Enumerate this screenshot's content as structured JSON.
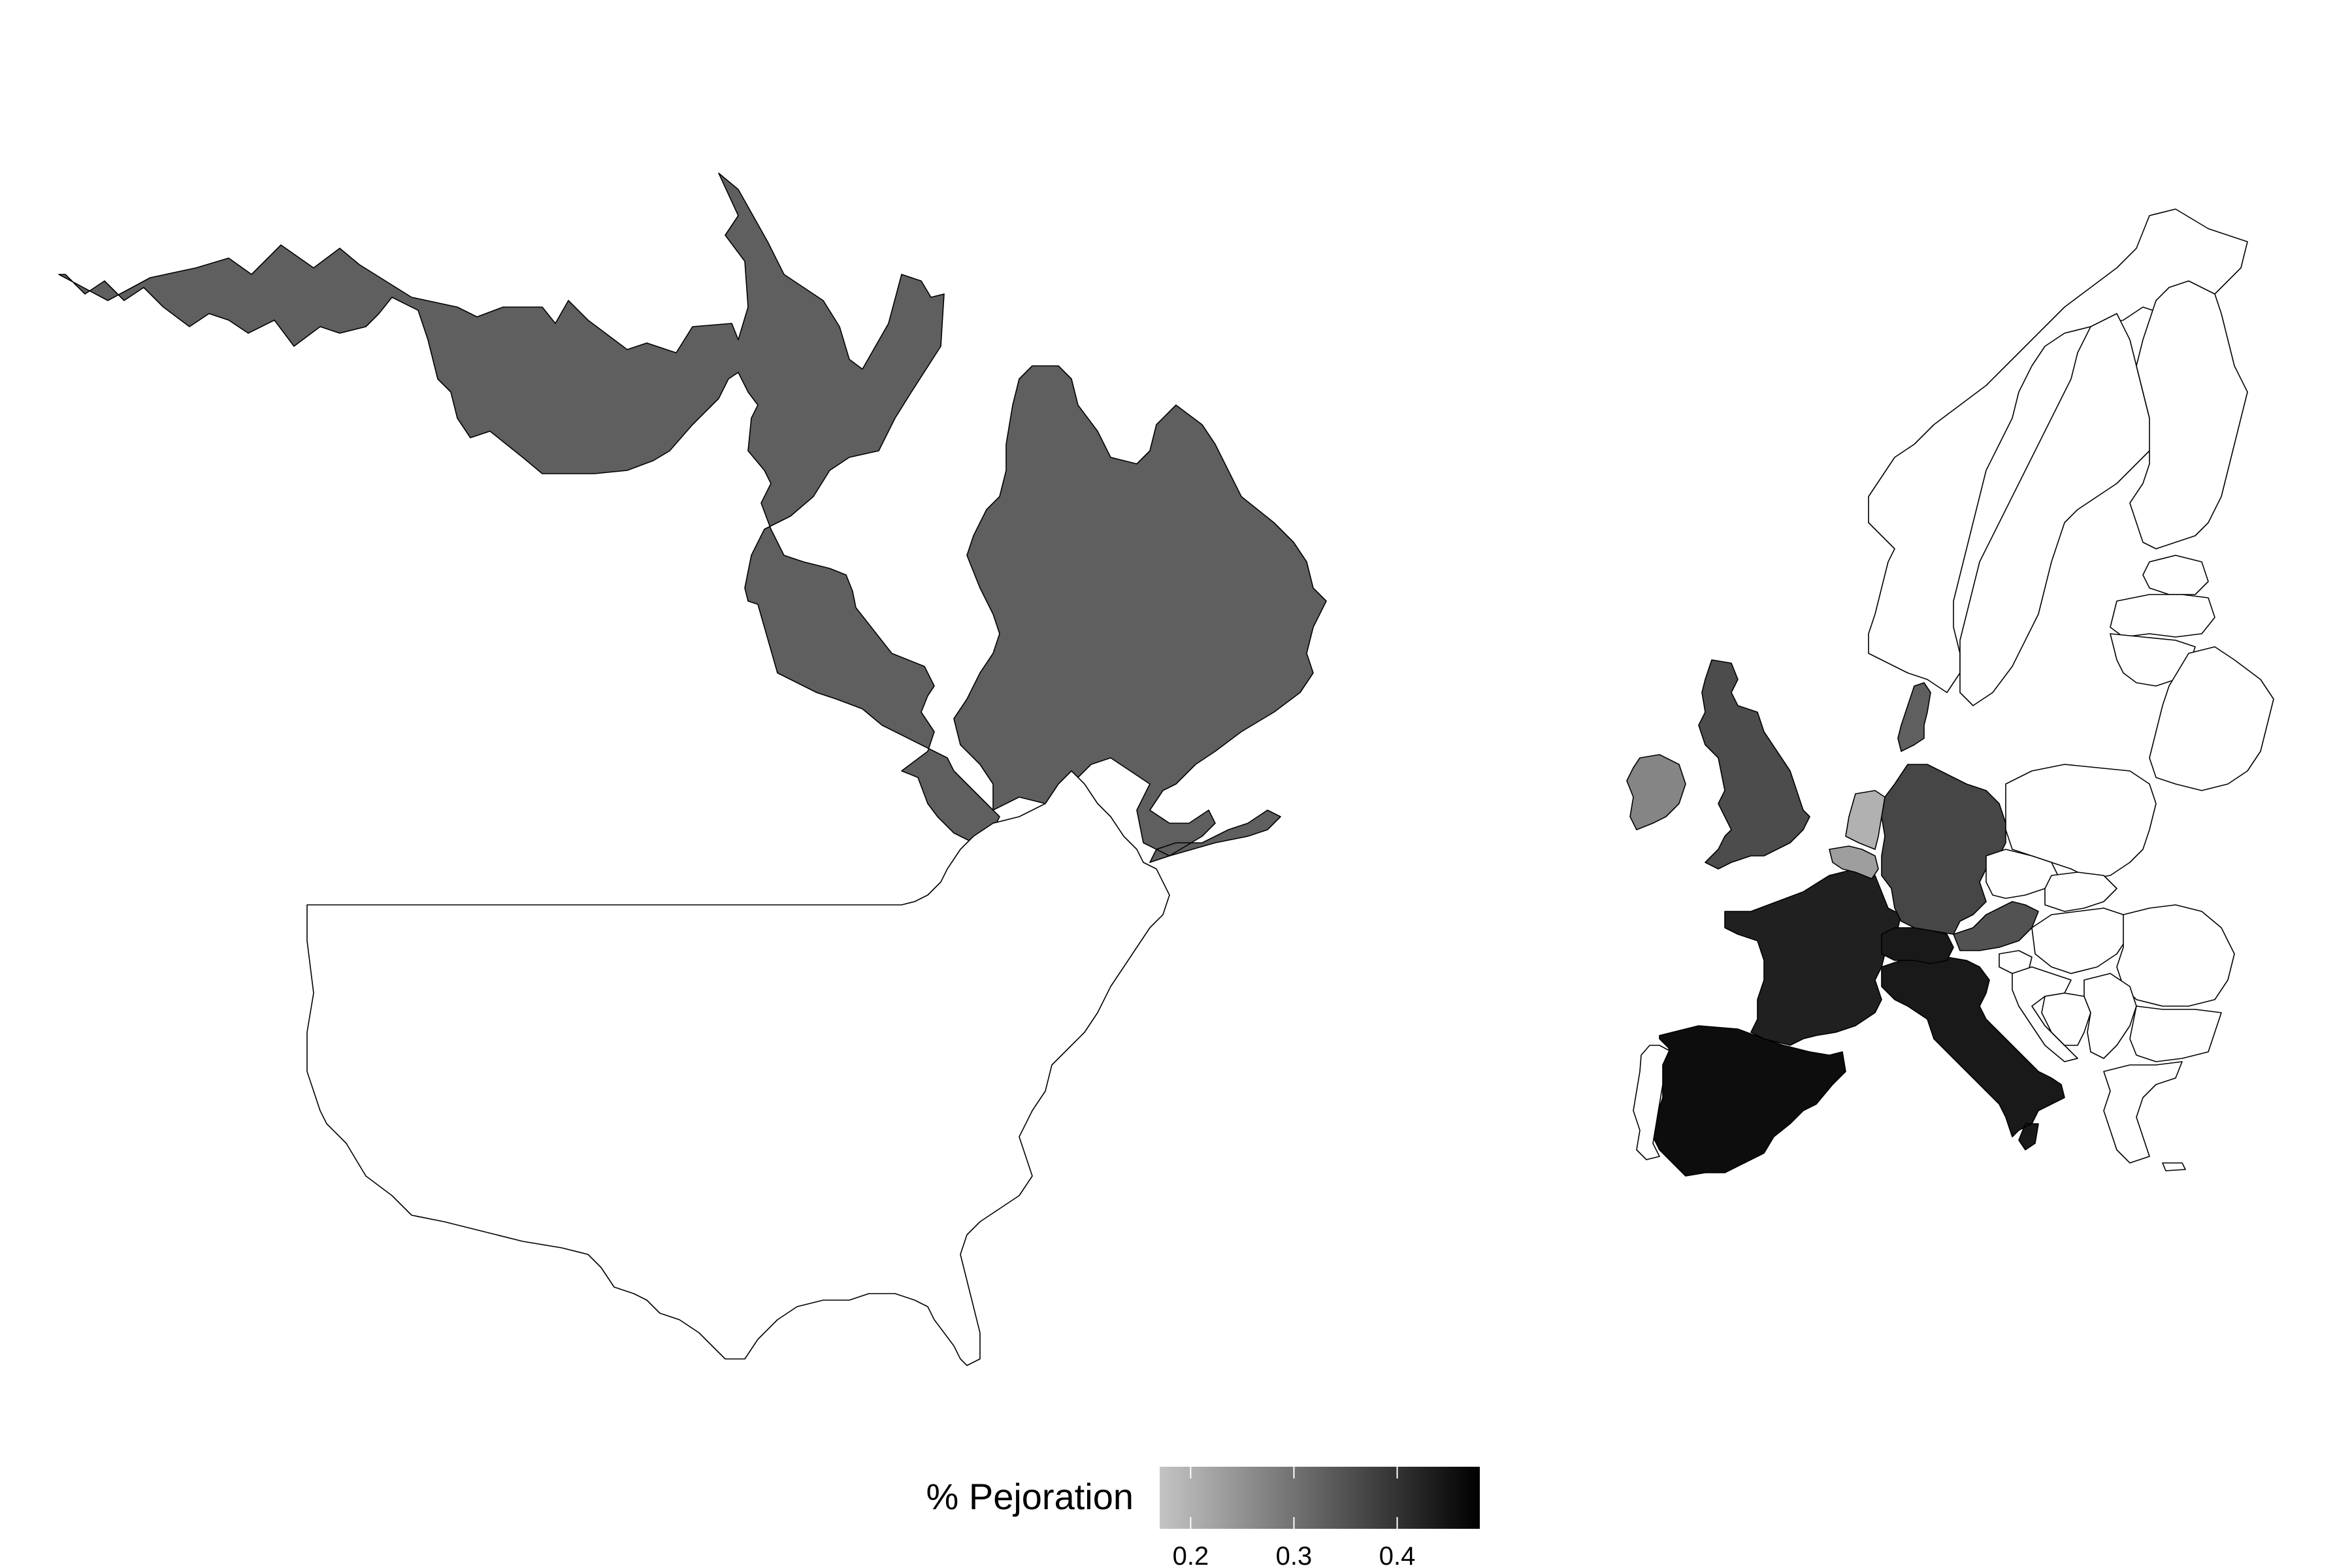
{
  "chart_data": {
    "type": "choropleth",
    "panels": [
      "North America",
      "Europe"
    ],
    "legend": {
      "title": "% Pejoration",
      "min": 0.17,
      "max": 0.48,
      "ticks": [
        0.2,
        0.3,
        0.4
      ],
      "tick_labels": [
        "0.2",
        "0.3",
        "0.4"
      ],
      "color_low": "#c4c4c4",
      "color_high": "#000000"
    },
    "no_data_color": "#ffffff",
    "regions": [
      {
        "name": "Canada",
        "value": 0.33
      },
      {
        "name": "United States",
        "value": null
      },
      {
        "name": "Spain",
        "value": 0.46
      },
      {
        "name": "France",
        "value": 0.43
      },
      {
        "name": "Italy",
        "value": 0.44
      },
      {
        "name": "Switzerland",
        "value": 0.44
      },
      {
        "name": "Germany",
        "value": 0.37
      },
      {
        "name": "Austria",
        "value": 0.35
      },
      {
        "name": "United Kingdom",
        "value": 0.36
      },
      {
        "name": "Denmark",
        "value": 0.33
      },
      {
        "name": "Ireland",
        "value": 0.27
      },
      {
        "name": "Belgium",
        "value": 0.23
      },
      {
        "name": "Netherlands",
        "value": 0.2
      },
      {
        "name": "Portugal",
        "value": null
      },
      {
        "name": "Norway",
        "value": null
      },
      {
        "name": "Sweden",
        "value": null
      },
      {
        "name": "Finland",
        "value": null
      },
      {
        "name": "Poland",
        "value": null
      },
      {
        "name": "Czechia",
        "value": null
      },
      {
        "name": "Slovakia",
        "value": null
      },
      {
        "name": "Hungary",
        "value": null
      },
      {
        "name": "Romania",
        "value": null
      },
      {
        "name": "Bulgaria",
        "value": null
      },
      {
        "name": "Greece",
        "value": null
      },
      {
        "name": "Serbia",
        "value": null
      },
      {
        "name": "Croatia",
        "value": null
      },
      {
        "name": "Bosnia and Herzegovina",
        "value": null
      },
      {
        "name": "Slovenia",
        "value": null
      },
      {
        "name": "Estonia",
        "value": null
      },
      {
        "name": "Latvia",
        "value": null
      },
      {
        "name": "Lithuania",
        "value": null
      },
      {
        "name": "Belarus",
        "value": null
      }
    ]
  }
}
